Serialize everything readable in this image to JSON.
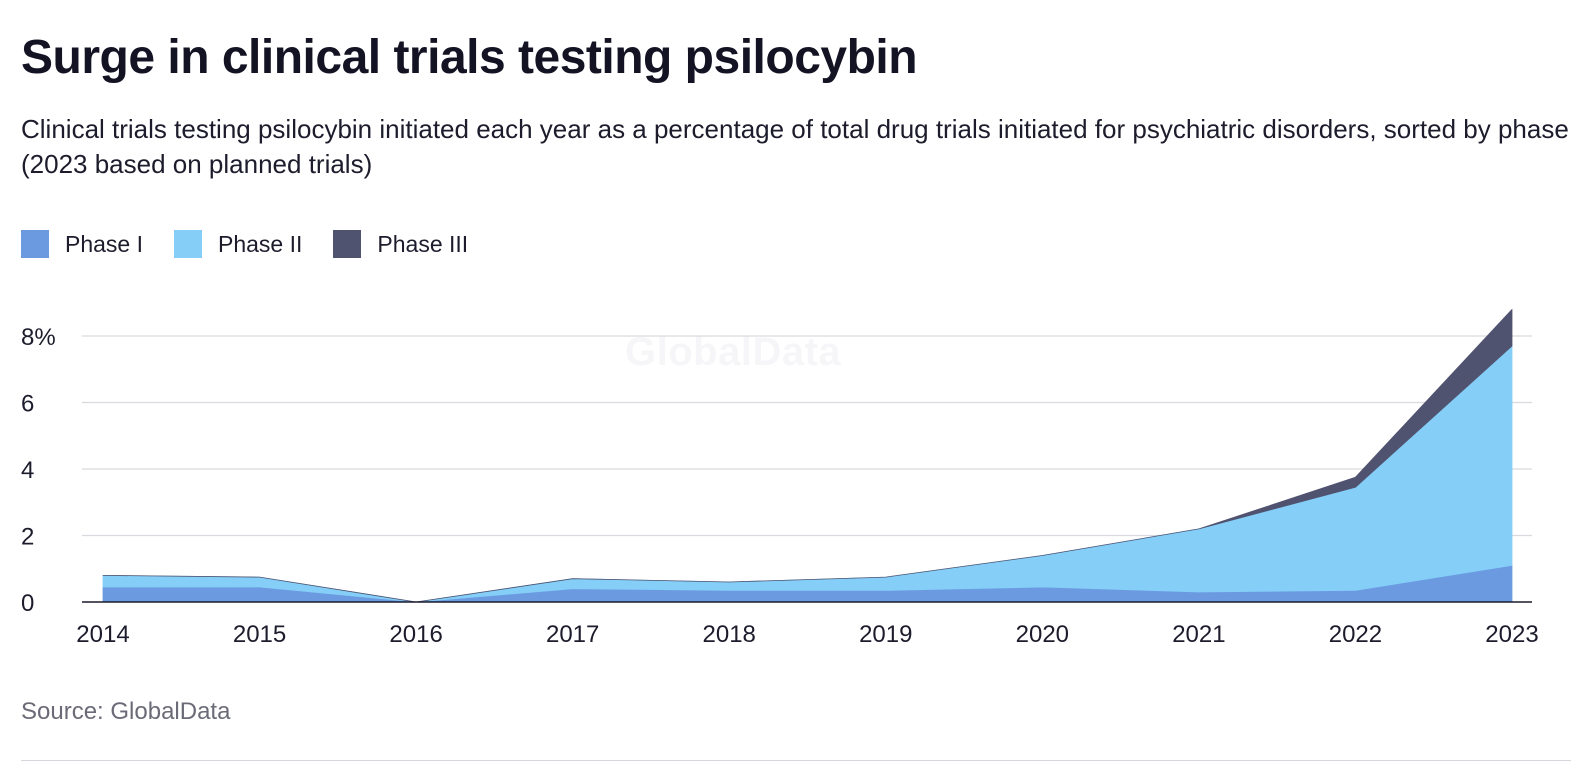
{
  "title": "Surge in clinical trials testing psilocybin",
  "subtitle": "Clinical trials testing psilocybin initiated each year as a percentage of total drug trials initiated for psychiatric disorders, sorted by phase (2023 based on planned trials)",
  "source": "Source: GlobalData",
  "watermark": "GlobalData",
  "legend": [
    {
      "label": "Phase I",
      "color": "#6b9ae0"
    },
    {
      "label": "Phase II",
      "color": "#84cef8"
    },
    {
      "label": "Phase III",
      "color": "#50536f"
    }
  ],
  "chart_data": {
    "type": "area",
    "stacked": true,
    "x": [
      "2014",
      "2015",
      "2016",
      "2017",
      "2018",
      "2019",
      "2020",
      "2021",
      "2022",
      "2023"
    ],
    "series": [
      {
        "name": "Phase I",
        "color": "#6b9ae0",
        "values": [
          0.45,
          0.45,
          0.0,
          0.4,
          0.35,
          0.35,
          0.45,
          0.3,
          0.35,
          1.1
        ]
      },
      {
        "name": "Phase II",
        "color": "#84cef8",
        "values": [
          0.35,
          0.3,
          0.0,
          0.3,
          0.25,
          0.4,
          0.95,
          1.9,
          3.1,
          6.6
        ]
      },
      {
        "name": "Phase III",
        "color": "#50536f",
        "values": [
          0.0,
          0.0,
          0.0,
          0.0,
          0.0,
          0.0,
          0.0,
          0.0,
          0.3,
          1.1
        ]
      }
    ],
    "yticks": [
      {
        "value": 0,
        "label": "0"
      },
      {
        "value": 2,
        "label": "2"
      },
      {
        "value": 4,
        "label": "4"
      },
      {
        "value": 6,
        "label": "6"
      },
      {
        "value": 8,
        "label": "8%"
      }
    ],
    "ylim": [
      0,
      8.8
    ],
    "grid": true,
    "legend_position": "top-left",
    "xlabel": "",
    "ylabel": ""
  }
}
